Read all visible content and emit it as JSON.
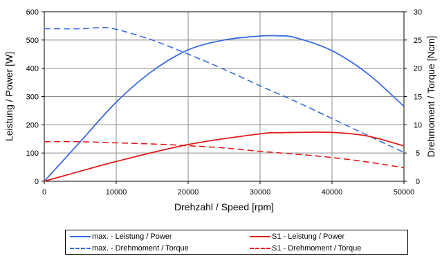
{
  "chart_data": {
    "type": "line",
    "title": "",
    "xlabel": "Drehzahl / Speed [rpm]",
    "ylabel": "Leistung / Power [W]",
    "y2label": "Drehmoment / Torque [Ncm]",
    "xlim": [
      0,
      50000
    ],
    "ylim": [
      0,
      600
    ],
    "y2lim": [
      0,
      30
    ],
    "xticks": [
      "0",
      "10000",
      "20000",
      "30000",
      "40000",
      "50000"
    ],
    "yticks": [
      "0",
      "100",
      "200",
      "300",
      "400",
      "500",
      "600"
    ],
    "y2ticks": [
      "0",
      "5",
      "10",
      "15",
      "20",
      "25",
      "30"
    ],
    "grid": true,
    "legend_position": "bottom",
    "series": [
      {
        "name": "max. - Leistung / Power",
        "axis": "left",
        "color": "#3a6be0",
        "style": "solid",
        "x": [
          0,
          5000,
          10000,
          15000,
          20000,
          25000,
          30000,
          32500,
          35000,
          40000,
          45000,
          50000
        ],
        "y": [
          0,
          140,
          280,
          390,
          465,
          500,
          514,
          515,
          508,
          462,
          380,
          265
        ]
      },
      {
        "name": "max. - Drehmoment / Torque",
        "axis": "right",
        "color": "#3a6be0",
        "style": "dashed",
        "x": [
          0,
          5000,
          8000,
          10000,
          15000,
          20000,
          25000,
          30000,
          35000,
          40000,
          45000,
          50000
        ],
        "y": [
          27,
          27,
          27.2,
          26.9,
          25.0,
          22.5,
          19.8,
          16.9,
          14.1,
          11.1,
          8.1,
          5.1
        ]
      },
      {
        "name": "S1 - Leistung / Power",
        "axis": "left",
        "color": "#e01a1a",
        "style": "solid",
        "x": [
          0,
          10000,
          20000,
          30000,
          33000,
          35000,
          40000,
          45000,
          50000
        ],
        "y": [
          0,
          70,
          130,
          168,
          172,
          173,
          173,
          160,
          125
        ]
      },
      {
        "name": "S1 - Drehmoment / Torque",
        "axis": "right",
        "color": "#e01a1a",
        "style": "dashed",
        "x": [
          0,
          5000,
          10000,
          15000,
          20000,
          25000,
          30000,
          35000,
          40000,
          45000,
          50000
        ],
        "y": [
          7.0,
          7.0,
          6.8,
          6.6,
          6.3,
          5.9,
          5.3,
          4.8,
          4.2,
          3.4,
          2.4
        ]
      }
    ]
  }
}
